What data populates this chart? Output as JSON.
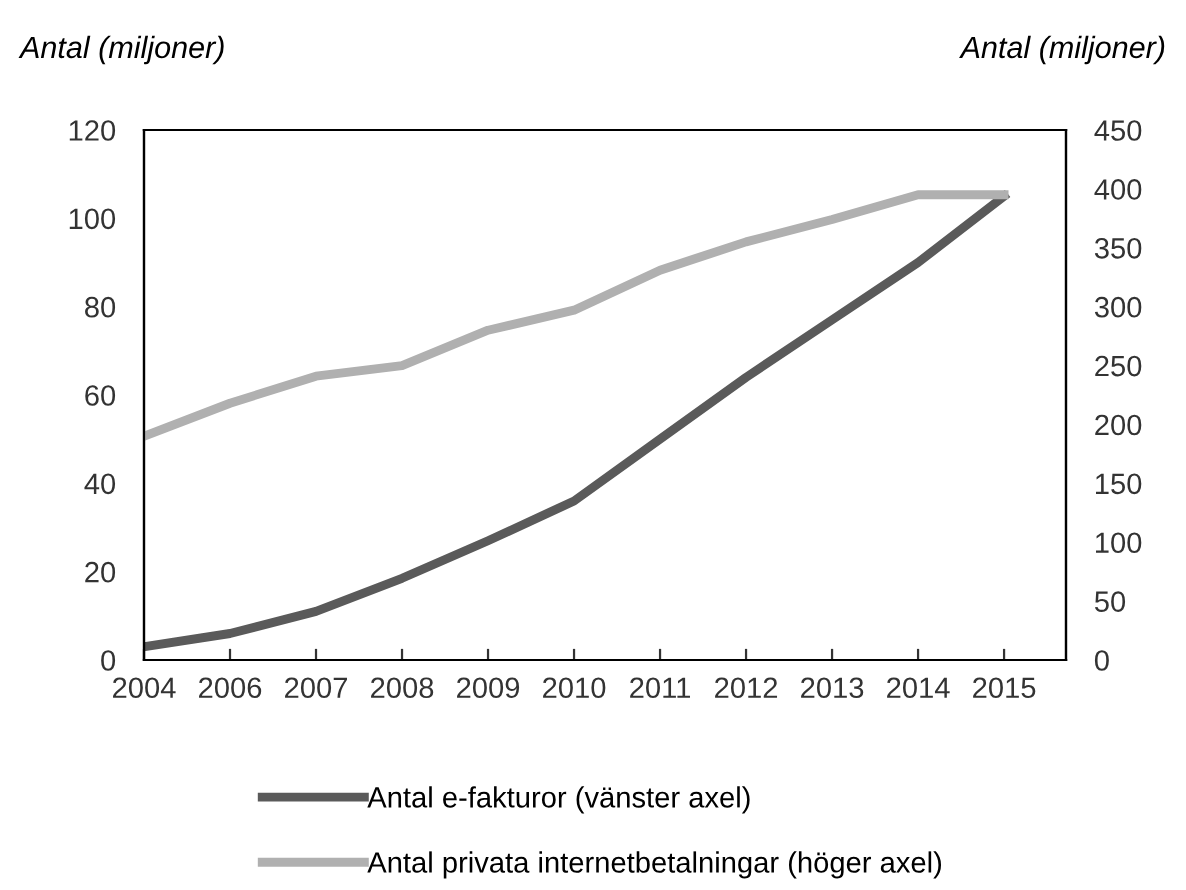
{
  "chart_data": {
    "type": "line",
    "ylabel": "Antal (miljoner)",
    "y2label": "Antal (miljoner)",
    "categories": [
      "2004",
      "2006",
      "2007",
      "2008",
      "2009",
      "2010",
      "2011",
      "2012",
      "2013",
      "2014",
      "2015"
    ],
    "series": [
      {
        "name": "Antal e-fakturor (vänster axel)",
        "color": "#5a5a5a",
        "values": [
          3,
          6,
          11,
          18.5,
          27,
          36,
          50,
          64,
          77,
          90,
          105
        ]
      },
      {
        "name": "Antal privata internetbetalningar (höger axel)",
        "color": "#b0b0b0",
        "axis": "y2",
        "values": [
          190,
          218,
          241,
          250,
          280,
          297,
          331,
          355,
          374,
          395,
          395
        ]
      }
    ],
    "ylim": [
      0,
      120
    ],
    "yticks": [
      0,
      20,
      40,
      60,
      80,
      100,
      120
    ],
    "y2lim": [
      0,
      450
    ],
    "y2ticks": [
      0,
      50,
      100,
      150,
      200,
      250,
      300,
      350,
      400,
      450
    ],
    "grid": false,
    "legend": "bottom",
    "marker": "none",
    "line_style": "solid"
  }
}
